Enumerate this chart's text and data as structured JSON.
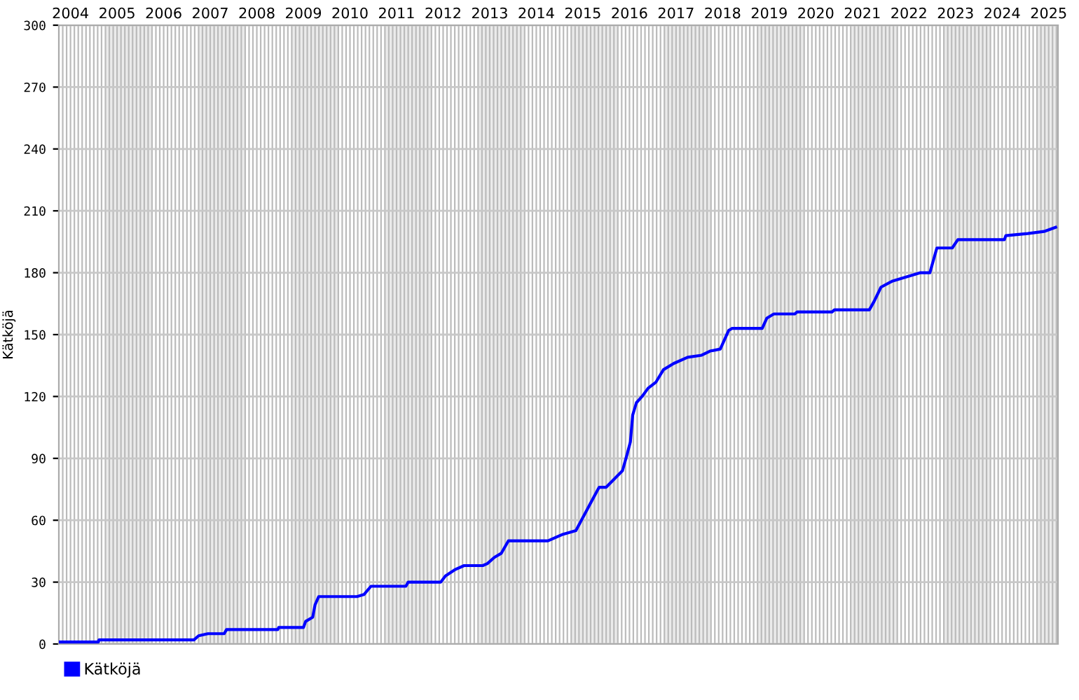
{
  "chart_data": {
    "type": "line",
    "ylabel": "Kätköjä",
    "x": [
      2004.0,
      2004.85,
      2004.86,
      2006.9,
      2007.0,
      2007.2,
      2007.55,
      2007.6,
      2008.7,
      2008.72,
      2009.25,
      2009.3,
      2009.45,
      2009.5,
      2009.58,
      2010.4,
      2010.55,
      2010.7,
      2011.45,
      2011.5,
      2012.2,
      2012.3,
      2012.5,
      2012.7,
      2013.1,
      2013.2,
      2013.35,
      2013.5,
      2013.65,
      2014.5,
      2014.8,
      2015.1,
      2015.55,
      2015.6,
      2015.75,
      2016.1,
      2016.2,
      2016.27,
      2016.32,
      2016.4,
      2016.52,
      2016.65,
      2016.82,
      2016.98,
      2017.2,
      2017.5,
      2017.8,
      2017.98,
      2018.2,
      2018.3,
      2018.38,
      2018.45,
      2019.1,
      2019.2,
      2019.35,
      2019.8,
      2019.85,
      2020.6,
      2020.65,
      2021.4,
      2021.5,
      2021.65,
      2021.9,
      2022.2,
      2022.5,
      2022.7,
      2022.85,
      2023.18,
      2023.3,
      2024.3,
      2024.33,
      2024.8,
      2025.15,
      2025.4
    ],
    "series": [
      {
        "name": "Kätköjä",
        "color": "#0000ff",
        "values": [
          1,
          1,
          2,
          2,
          4,
          5,
          5,
          7,
          7,
          8,
          8,
          11,
          13,
          19,
          23,
          23,
          24,
          28,
          28,
          30,
          30,
          33,
          36,
          38,
          38,
          39,
          42,
          44,
          50,
          50,
          53,
          55,
          74,
          76,
          76,
          84,
          92,
          98,
          111,
          117,
          120,
          124,
          127,
          133,
          136,
          139,
          140,
          142,
          143,
          148,
          152,
          153,
          153,
          158,
          160,
          160,
          161,
          161,
          162,
          162,
          166,
          173,
          176,
          178,
          180,
          180,
          192,
          192,
          196,
          196,
          198,
          199,
          200,
          202
        ]
      }
    ],
    "xlim": [
      2004.0,
      2025.45
    ],
    "xticks": [
      {
        "value": 2004.25,
        "label": "2004"
      },
      {
        "value": 2005.25,
        "label": "2005"
      },
      {
        "value": 2006.25,
        "label": "2006"
      },
      {
        "value": 2007.25,
        "label": "2007"
      },
      {
        "value": 2008.25,
        "label": "2008"
      },
      {
        "value": 2009.25,
        "label": "2009"
      },
      {
        "value": 2010.25,
        "label": "2010"
      },
      {
        "value": 2011.25,
        "label": "2011"
      },
      {
        "value": 2012.25,
        "label": "2012"
      },
      {
        "value": 2013.25,
        "label": "2013"
      },
      {
        "value": 2014.25,
        "label": "2014"
      },
      {
        "value": 2015.25,
        "label": "2015"
      },
      {
        "value": 2016.25,
        "label": "2016"
      },
      {
        "value": 2017.25,
        "label": "2017"
      },
      {
        "value": 2018.25,
        "label": "2018"
      },
      {
        "value": 2019.25,
        "label": "2019"
      },
      {
        "value": 2020.25,
        "label": "2020"
      },
      {
        "value": 2021.25,
        "label": "2021"
      },
      {
        "value": 2022.25,
        "label": "2022"
      },
      {
        "value": 2023.25,
        "label": "2023"
      },
      {
        "value": 2024.25,
        "label": "2024"
      },
      {
        "value": 2025.25,
        "label": "2025"
      }
    ],
    "ylim": [
      0,
      300
    ],
    "yticks": [
      0,
      30,
      60,
      90,
      120,
      150,
      180,
      210,
      240,
      270,
      300
    ],
    "bands": [
      {
        "axis": "x",
        "from": 2005,
        "to": 2006,
        "color": "#ebebeb"
      },
      {
        "axis": "x",
        "from": 2007,
        "to": 2008,
        "color": "#ebebeb"
      },
      {
        "axis": "x",
        "from": 2009,
        "to": 2010,
        "color": "#ebebeb"
      },
      {
        "axis": "x",
        "from": 2011,
        "to": 2012,
        "color": "#ebebeb"
      },
      {
        "axis": "x",
        "from": 2013,
        "to": 2014,
        "color": "#ebebeb"
      },
      {
        "axis": "x",
        "from": 2015,
        "to": 2016,
        "color": "#ebebeb"
      },
      {
        "axis": "x",
        "from": 2017,
        "to": 2018,
        "color": "#ebebeb"
      },
      {
        "axis": "x",
        "from": 2019,
        "to": 2020,
        "color": "#ebebeb"
      },
      {
        "axis": "x",
        "from": 2021,
        "to": 2022,
        "color": "#ebebeb"
      },
      {
        "axis": "x",
        "from": 2023,
        "to": 2024,
        "color": "#ebebeb"
      },
      {
        "axis": "x",
        "from": 2025,
        "to": 2025.45,
        "color": "#ebebeb"
      }
    ],
    "grid": true,
    "legend": "bottom left",
    "marker": "none",
    "line_style": "solid"
  }
}
